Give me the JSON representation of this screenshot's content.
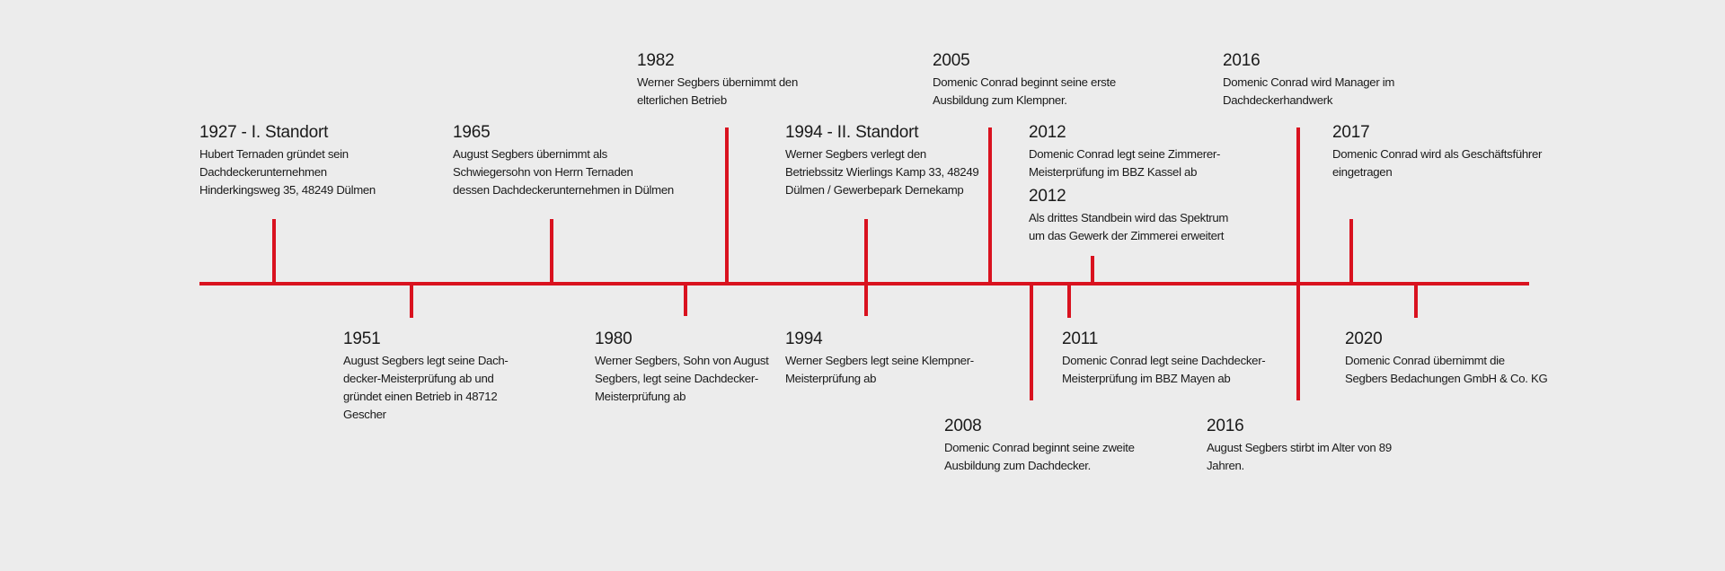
{
  "accent_color": "#d9121f",
  "events": [
    {
      "year": "1927 - I. Standort",
      "text": "Hubert Ternaden gründet sein\nDachdeckerunternehmen\nHinderkingsweg 35, 48249 Dülmen"
    },
    {
      "year": "1951",
      "text": "August Segbers legt seine Dach-\ndecker-Meisterprüfung ab und\ngründet einen Betrieb in 48712\nGescher"
    },
    {
      "year": "1965",
      "text": "August Segbers übernimmt als\nSchwiegersohn von Herrn Ternaden\ndessen Dachdeckerunternehmen in Dülmen"
    },
    {
      "year": "1980",
      "text": "Werner Segbers, Sohn von August\nSegbers, legt seine Dachdecker-\nMeisterprüfung ab"
    },
    {
      "year": "1982",
      "text": "Werner Segbers übernimmt den\nelterlichen Betrieb"
    },
    {
      "year": "1994 - II. Standort",
      "text": "Werner Segbers verlegt den\nBetriebssitz Wierlings Kamp 33, 48249\nDülmen / Gewerbepark Dernekamp"
    },
    {
      "year": "1994",
      "text": "Werner Segbers legt seine Klempner-\nMeisterprüfung ab"
    },
    {
      "year": "2005",
      "text": "Domenic Conrad beginnt seine erste\nAusbildung zum Klempner."
    },
    {
      "year": "2008",
      "text": "Domenic Conrad beginnt seine zweite\nAusbildung zum Dachdecker."
    },
    {
      "year": "2012",
      "text": "Domenic Conrad legt seine Zimmerer-\nMeisterprüfung im BBZ Kassel ab"
    },
    {
      "year": "2012",
      "text": "Als drittes Standbein wird das Spektrum\num das Gewerk der Zimmerei erweitert"
    },
    {
      "year": "2011",
      "text": "Domenic Conrad legt seine Dachdecker-\nMeisterprüfung im BBZ Mayen ab"
    },
    {
      "year": "2016",
      "text": "Domenic Conrad wird Manager im\nDachdeckerhandwerk"
    },
    {
      "year": "2016",
      "text": "August Segbers stirbt im Alter von 89\nJahren."
    },
    {
      "year": "2017",
      "text": "Domenic Conrad wird als Geschäftsführer\neingetragen"
    },
    {
      "year": "2020",
      "text": "Domenic Conrad übernimmt die\nSegbers Bedachungen GmbH & Co. KG"
    }
  ]
}
